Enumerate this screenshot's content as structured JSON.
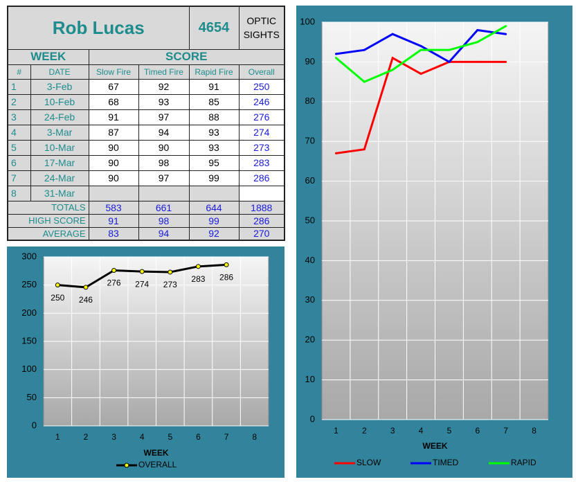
{
  "table": {
    "name": "Rob Lucas",
    "id": "4654",
    "class": "OPTIC SIGHTS",
    "groups": [
      "WEEK",
      "SCORE"
    ],
    "columns": [
      "#",
      "DATE",
      "Slow Fire",
      "Timed Fire",
      "Rapid Fire",
      "Overall"
    ],
    "rows": [
      [
        1,
        "3-Feb",
        67,
        92,
        91,
        250
      ],
      [
        2,
        "10-Feb",
        68,
        93,
        85,
        246
      ],
      [
        3,
        "24-Feb",
        91,
        97,
        88,
        276
      ],
      [
        4,
        "3-Mar",
        87,
        94,
        93,
        274
      ],
      [
        5,
        "10-Mar",
        90,
        90,
        93,
        273
      ],
      [
        6,
        "17-Mar",
        90,
        98,
        95,
        283
      ],
      [
        7,
        "24-Mar",
        90,
        97,
        99,
        286
      ],
      [
        8,
        "31-Mar"
      ]
    ],
    "summary": [
      {
        "label": "TOTALS",
        "values": [
          583,
          661,
          644,
          1888
        ]
      },
      {
        "label": "HIGH SCORE",
        "values": [
          91,
          98,
          99,
          286
        ]
      },
      {
        "label": "AVERAGE",
        "values": [
          83,
          94,
          92,
          270
        ]
      }
    ]
  },
  "chart_data": [
    {
      "type": "line",
      "x_label": "WEEK",
      "categories": [
        1,
        2,
        3,
        4,
        5,
        6,
        7,
        8
      ],
      "series": [
        {
          "name": "OVERALL",
          "color": "#000000",
          "marker_color": "#ffff00",
          "values": [
            250,
            246,
            276,
            274,
            273,
            283,
            286,
            null
          ]
        }
      ],
      "data_labels": true,
      "ylim": [
        0,
        300
      ],
      "yticks": [
        0,
        50,
        100,
        150,
        200,
        250,
        300
      ],
      "grid": true,
      "legend": "bottom"
    },
    {
      "type": "line",
      "x_label": "WEEK",
      "categories": [
        1,
        2,
        3,
        4,
        5,
        6,
        7,
        8
      ],
      "series": [
        {
          "name": "SLOW",
          "color": "#ff0000",
          "values": [
            67,
            68,
            91,
            87,
            90,
            90,
            90,
            null
          ]
        },
        {
          "name": "TIMED",
          "color": "#0000ff",
          "values": [
            92,
            93,
            97,
            94,
            90,
            98,
            97,
            null
          ]
        },
        {
          "name": "RAPID",
          "color": "#00ff00",
          "values": [
            91,
            85,
            88,
            93,
            93,
            95,
            99,
            null
          ]
        }
      ],
      "data_labels": false,
      "ylim": [
        0,
        100
      ],
      "yticks": [
        0,
        10,
        20,
        30,
        40,
        50,
        60,
        70,
        80,
        90,
        100
      ],
      "grid": true,
      "legend": "bottom"
    }
  ]
}
